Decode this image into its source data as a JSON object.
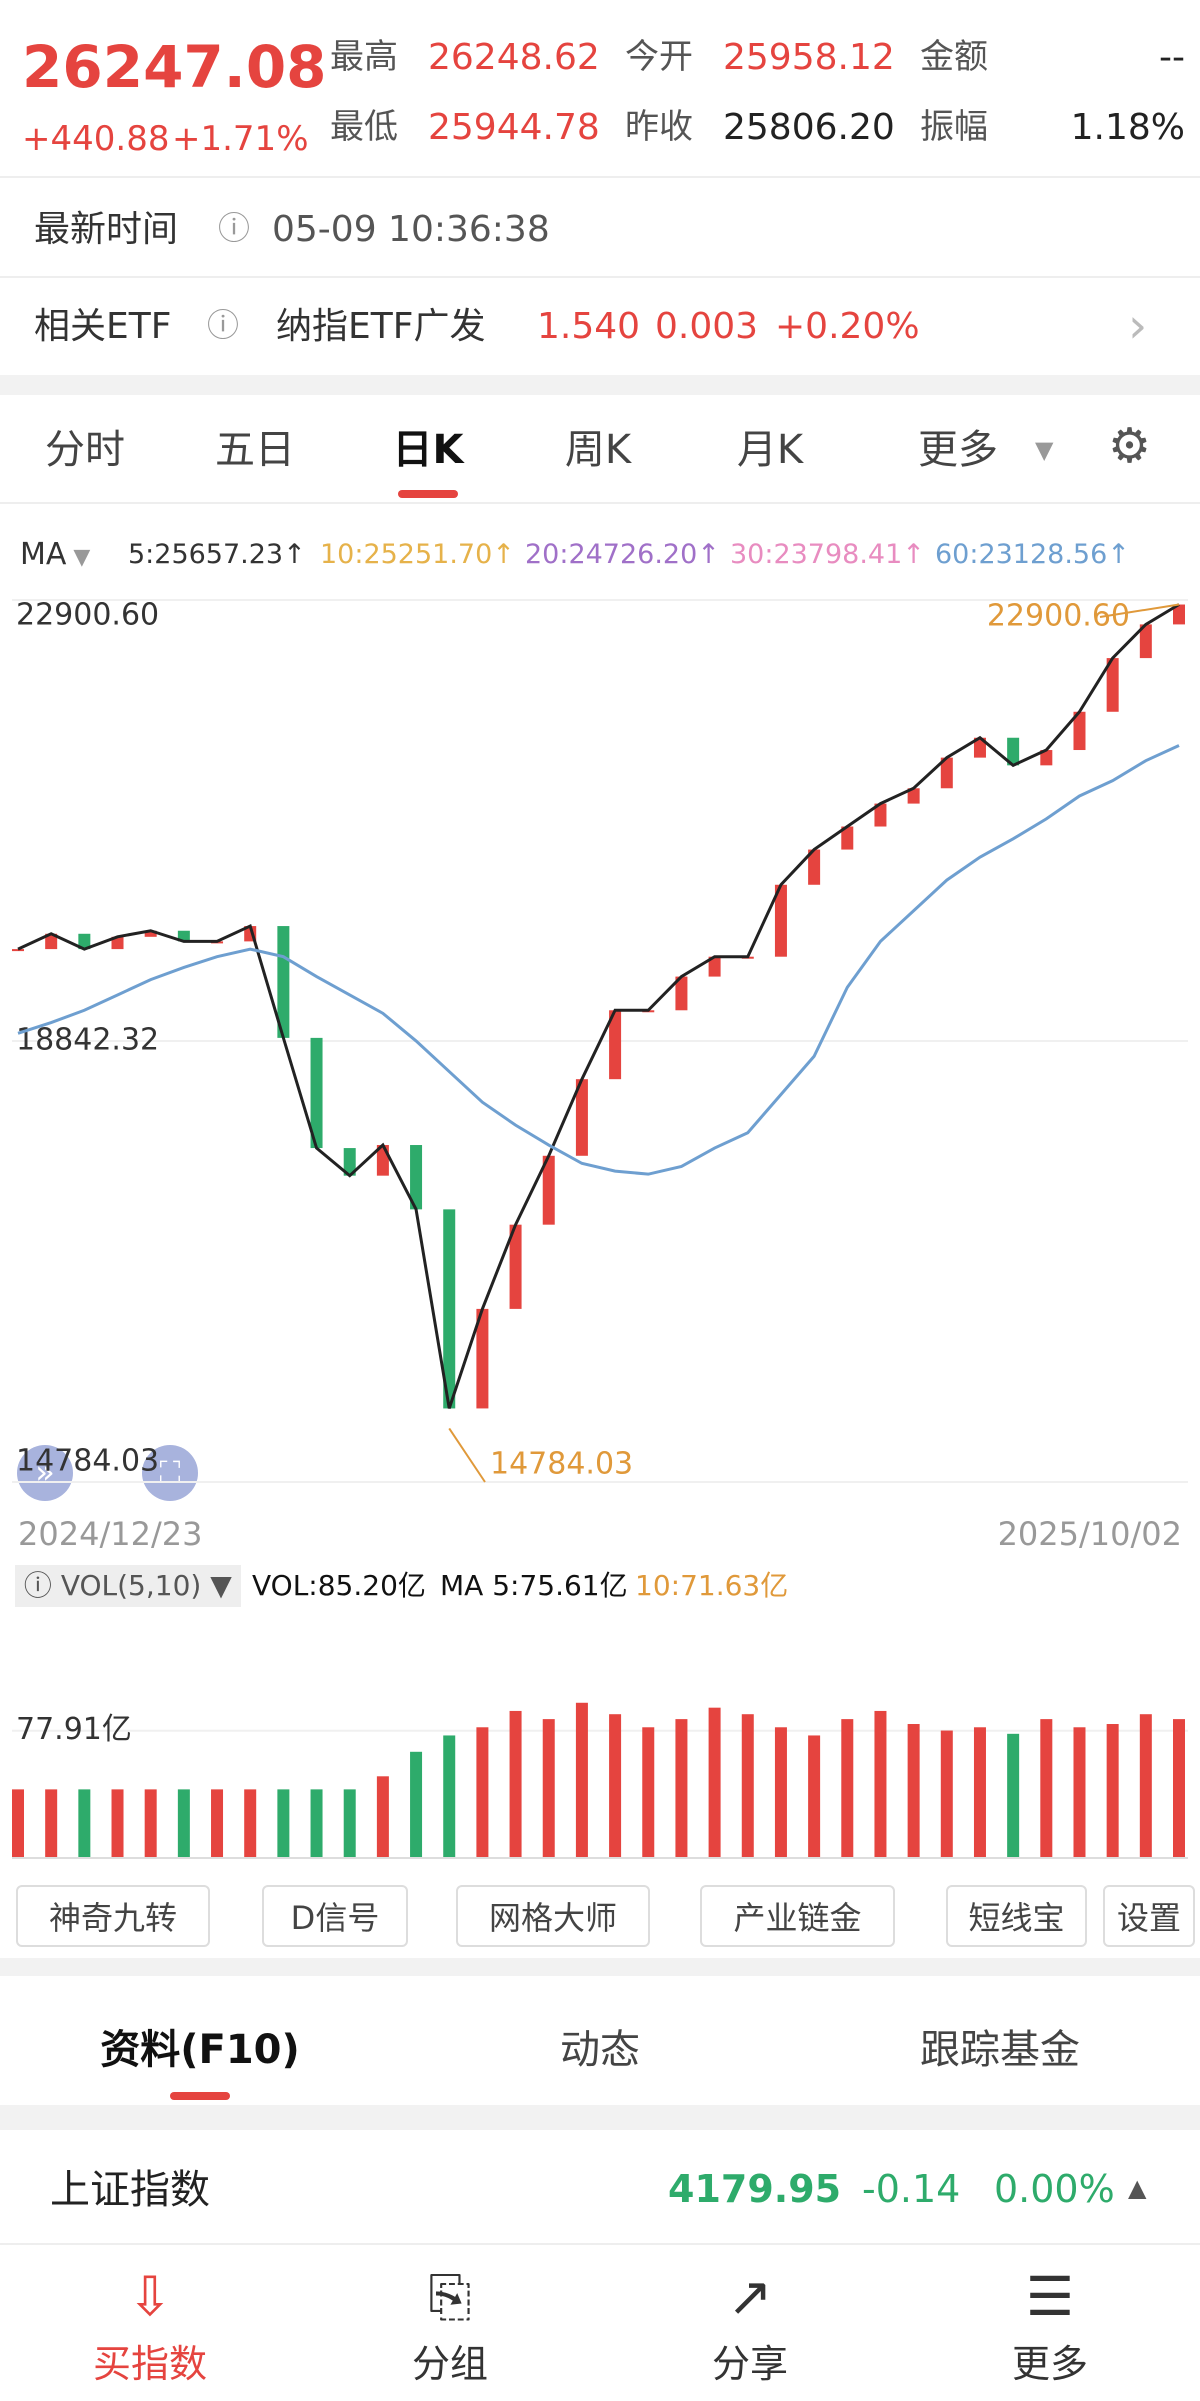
{
  "header": {
    "price": "26247.08",
    "change": "+440.88",
    "percent": "+1.71%",
    "stats": [
      {
        "label": "最高",
        "value": "26248.62"
      },
      {
        "label": "今开",
        "value": "25958.12"
      },
      {
        "label": "金额",
        "value": "--"
      },
      {
        "label": "最低",
        "value": "25944.78"
      },
      {
        "label": "昨收",
        "value": "25806.20"
      },
      {
        "label": "振幅",
        "value": "1.18%"
      }
    ]
  },
  "time_row": {
    "label": "最新时间",
    "value": "05-09 10:36:38"
  },
  "etf_row": {
    "label": "相关ETF",
    "name": "纳指ETF广发",
    "price": "1.540",
    "change": "0.003",
    "percent": "+0.20%"
  },
  "tabs": [
    "分时",
    "五日",
    "日K",
    "周K",
    "月K",
    "更多"
  ],
  "ma_legend": {
    "label": "MA",
    "items": [
      {
        "text": "5:25657.23↑",
        "color": "#333333"
      },
      {
        "text": "10:25251.70↑",
        "color": "#e6b24a"
      },
      {
        "text": "20:24726.20↑",
        "color": "#a070c8"
      },
      {
        "text": "30:23798.41↑",
        "color": "#e88cc0"
      },
      {
        "text": "60:23128.56↑",
        "color": "#6e9fd0"
      }
    ]
  },
  "chart_data": {
    "type": "candlestick",
    "start_date": "2024/12/23",
    "end_date": "2025/10/02",
    "close": [
      19688,
      19829,
      19688,
      19801,
      19857,
      19759,
      19759,
      19900,
      18871,
      17857,
      17603,
      17885,
      17293,
      15461,
      16377,
      17152,
      17786,
      18491,
      19125,
      19125,
      19435,
      19618,
      19618,
      20280,
      20604,
      20816,
      21027,
      21168,
      21450,
      21633,
      21379,
      21520,
      21872,
      22366,
      22676,
      22859
    ],
    "ma60": [
      18913,
      19012,
      19125,
      19266,
      19407,
      19519,
      19618,
      19688,
      19618,
      19435,
      19266,
      19097,
      18843,
      18561,
      18279,
      18068,
      17885,
      17716,
      17645,
      17617,
      17688,
      17857,
      17998,
      18350,
      18702,
      19336,
      19759,
      20041,
      20323,
      20534,
      20703,
      20886,
      21097,
      21238,
      21422,
      21562
    ],
    "ma60_color": "#6e9fd0",
    "up_color": "#e5443f",
    "down_color": "#2eab6b",
    "ylim": [
      14784.03,
      22900.6
    ],
    "yticks": [
      {
        "value": 22900.6,
        "label": "22900.60"
      },
      18842.32,
      14784.03
    ],
    "grid": true,
    "high_label": "22900.60",
    "low_label": "14784.03",
    "annotation_color": "#e0993a",
    "volume_legend": {
      "name": "VOL(5,10)",
      "vol": "VOL:85.20亿",
      "ma5": "MA 5:75.61亿",
      "ma10": "10:71.63亿"
    },
    "volume": [
      42,
      42,
      42,
      42,
      42,
      42,
      42,
      42,
      42,
      42,
      42,
      50,
      65,
      75,
      80,
      90,
      85,
      95,
      88,
      80,
      85,
      92,
      88,
      80,
      75,
      85,
      90,
      82,
      78,
      80,
      76,
      85,
      80,
      82,
      88,
      85
    ],
    "volume_ylim": [
      0,
      153
    ],
    "volume_yticks": [
      {
        "value": 77.91,
        "label": "77.91亿"
      }
    ]
  },
  "tools": [
    "神奇九转",
    "D信号",
    "网格大师",
    "产业链金",
    "短线宝",
    "设置"
  ],
  "info_tabs": [
    "资料(F10)",
    "动态",
    "跟踪基金"
  ],
  "index_row": {
    "name": "上证指数",
    "price": "4179.95",
    "change": "-0.14",
    "percent": "0.00%"
  },
  "nav": [
    "买指数",
    "分组",
    "分享",
    "更多"
  ]
}
